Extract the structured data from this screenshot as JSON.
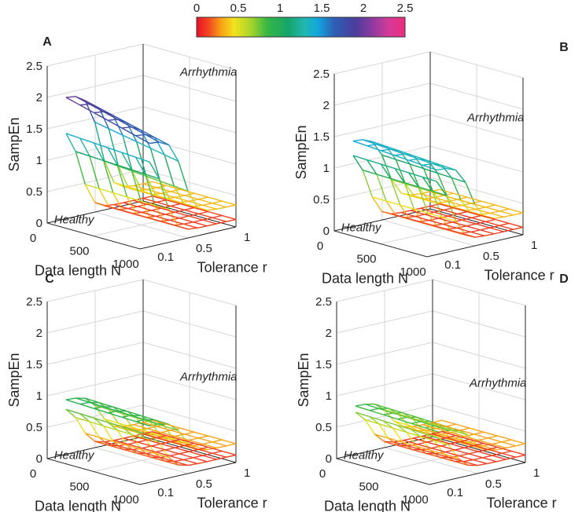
{
  "chart_data": [
    {
      "panel": "A",
      "type": "surface",
      "colorbar": {
        "ticks": [
          "0",
          "0.5",
          "1",
          "1.5",
          "2",
          "2.5"
        ],
        "range": [
          0,
          2.5
        ]
      },
      "zlabel": "SampEn",
      "xlabel": "Data length N",
      "ylabel": "Tolerance r",
      "xticks": [
        "0",
        "500",
        "1000"
      ],
      "yticks": [
        "0.1",
        "0.5",
        "1"
      ],
      "zticks": [
        "0",
        "0.5",
        "1",
        "1.5",
        "2",
        "2.5"
      ],
      "zlim": [
        0,
        2.5
      ],
      "N_values": [
        100,
        250,
        400,
        550,
        700,
        850,
        1000
      ],
      "r_values": [
        0.1,
        0.2,
        0.3,
        0.4,
        0.5,
        0.6,
        0.7,
        0.8,
        0.9,
        1.0
      ],
      "series": [
        {
          "name": "Arrhythmia",
          "label": "Arrhythmia",
          "sampen_peak": 2.05,
          "sampen_plateau": 1.65,
          "sampen_min": 0.35,
          "decay_r": 0.45
        },
        {
          "name": "Healthy",
          "label": "Healthy",
          "sampen_peak": 1.55,
          "sampen_plateau": 1.45,
          "sampen_min": 0.12,
          "decay_r": 0.25
        }
      ]
    },
    {
      "panel": "B",
      "type": "surface",
      "zlabel": "SampEn",
      "xlabel": "Data length N",
      "ylabel": "Tolerance r",
      "xticks": [
        "0",
        "500",
        "1000"
      ],
      "yticks": [
        "0.1",
        "0.5",
        "1"
      ],
      "zticks": [
        "0",
        "0.5",
        "1",
        "1.5",
        "2",
        "2.5"
      ],
      "zlim": [
        0,
        2.5
      ],
      "N_values": [
        100,
        250,
        400,
        550,
        700,
        850,
        1000
      ],
      "r_values": [
        0.1,
        0.2,
        0.3,
        0.4,
        0.5,
        0.6,
        0.7,
        0.8,
        0.9,
        1.0
      ],
      "series": [
        {
          "name": "Arrhythmia",
          "label": "Arrhythmia",
          "sampen_peak": 1.45,
          "sampen_plateau": 1.35,
          "sampen_min": 0.35,
          "decay_r": 0.45
        },
        {
          "name": "Healthy",
          "label": "Healthy",
          "sampen_peak": 1.3,
          "sampen_plateau": 1.25,
          "sampen_min": 0.12,
          "decay_r": 0.25
        }
      ]
    },
    {
      "panel": "C",
      "type": "surface",
      "zlabel": "SampEn",
      "xlabel": "Data length N",
      "ylabel": "Tolerance r",
      "xticks": [
        "0",
        "500",
        "1000"
      ],
      "yticks": [
        "0.1",
        "0.5",
        "1"
      ],
      "zticks": [
        "0",
        "0.5",
        "1",
        "1.5",
        "2",
        "2.5"
      ],
      "zlim": [
        0,
        2.5
      ],
      "N_values": [
        100,
        250,
        400,
        550,
        700,
        850,
        1000
      ],
      "r_values": [
        0.1,
        0.2,
        0.3,
        0.4,
        0.5,
        0.6,
        0.7,
        0.8,
        0.9,
        1.0
      ],
      "series": [
        {
          "name": "Arrhythmia",
          "label": "Arrhythmia",
          "sampen_peak": 0.95,
          "sampen_plateau": 0.9,
          "sampen_min": 0.3,
          "decay_r": 0.45
        },
        {
          "name": "Healthy",
          "label": "Healthy",
          "sampen_peak": 0.85,
          "sampen_plateau": 0.8,
          "sampen_min": 0.12,
          "decay_r": 0.25
        }
      ]
    },
    {
      "panel": "D",
      "type": "surface",
      "zlabel": "SampEn",
      "xlabel": "Data length N",
      "ylabel": "Tolerance r",
      "xticks": [
        "0",
        "500",
        "1000"
      ],
      "yticks": [
        "0.1",
        "0.5",
        "1"
      ],
      "zticks": [
        "0",
        "0.5",
        "1",
        "1.5",
        "2",
        "2.5"
      ],
      "zlim": [
        0,
        2.5
      ],
      "N_values": [
        100,
        250,
        400,
        550,
        700,
        850,
        1000
      ],
      "r_values": [
        0.1,
        0.2,
        0.3,
        0.4,
        0.5,
        0.6,
        0.7,
        0.8,
        0.9,
        1.0
      ],
      "series": [
        {
          "name": "Arrhythmia",
          "label": "Arrhythmia",
          "sampen_peak": 0.85,
          "sampen_plateau": 0.8,
          "sampen_min": 0.3,
          "decay_r": 0.45
        },
        {
          "name": "Healthy",
          "label": "Healthy",
          "sampen_peak": 0.8,
          "sampen_plateau": 0.75,
          "sampen_min": 0.12,
          "decay_r": 0.25
        }
      ]
    }
  ]
}
